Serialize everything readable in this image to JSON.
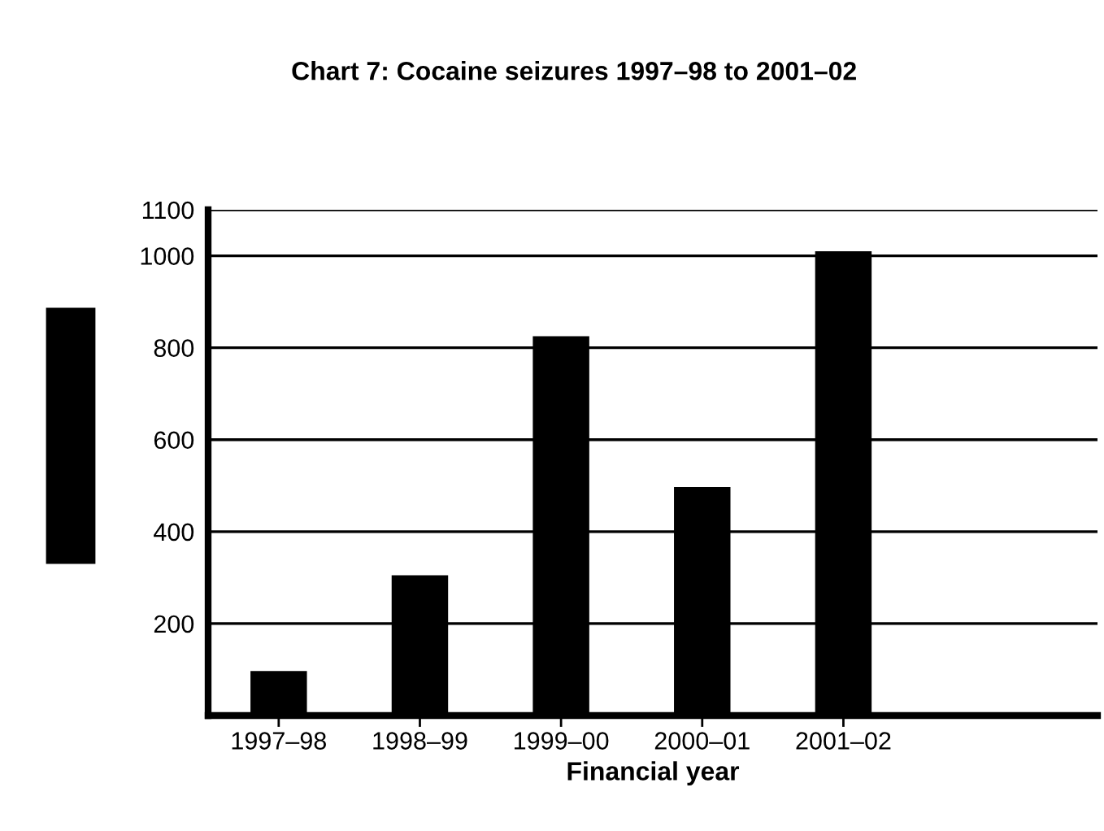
{
  "chart_data": {
    "type": "bar",
    "title": "Chart 7: Cocaine seizures 1997–98 to 2001–02",
    "xlabel": "Financial year",
    "categories": [
      "1997–98",
      "1998–99",
      "1999–00",
      "2000–01",
      "2001–02",
      null
    ],
    "values": [
      97,
      305,
      825,
      497,
      1010,
      null
    ],
    "color": "#000000",
    "ylim": [
      0,
      1100
    ],
    "yticks": [
      200,
      400,
      600,
      800,
      1000,
      1100
    ],
    "grid": "y",
    "legend": false
  }
}
